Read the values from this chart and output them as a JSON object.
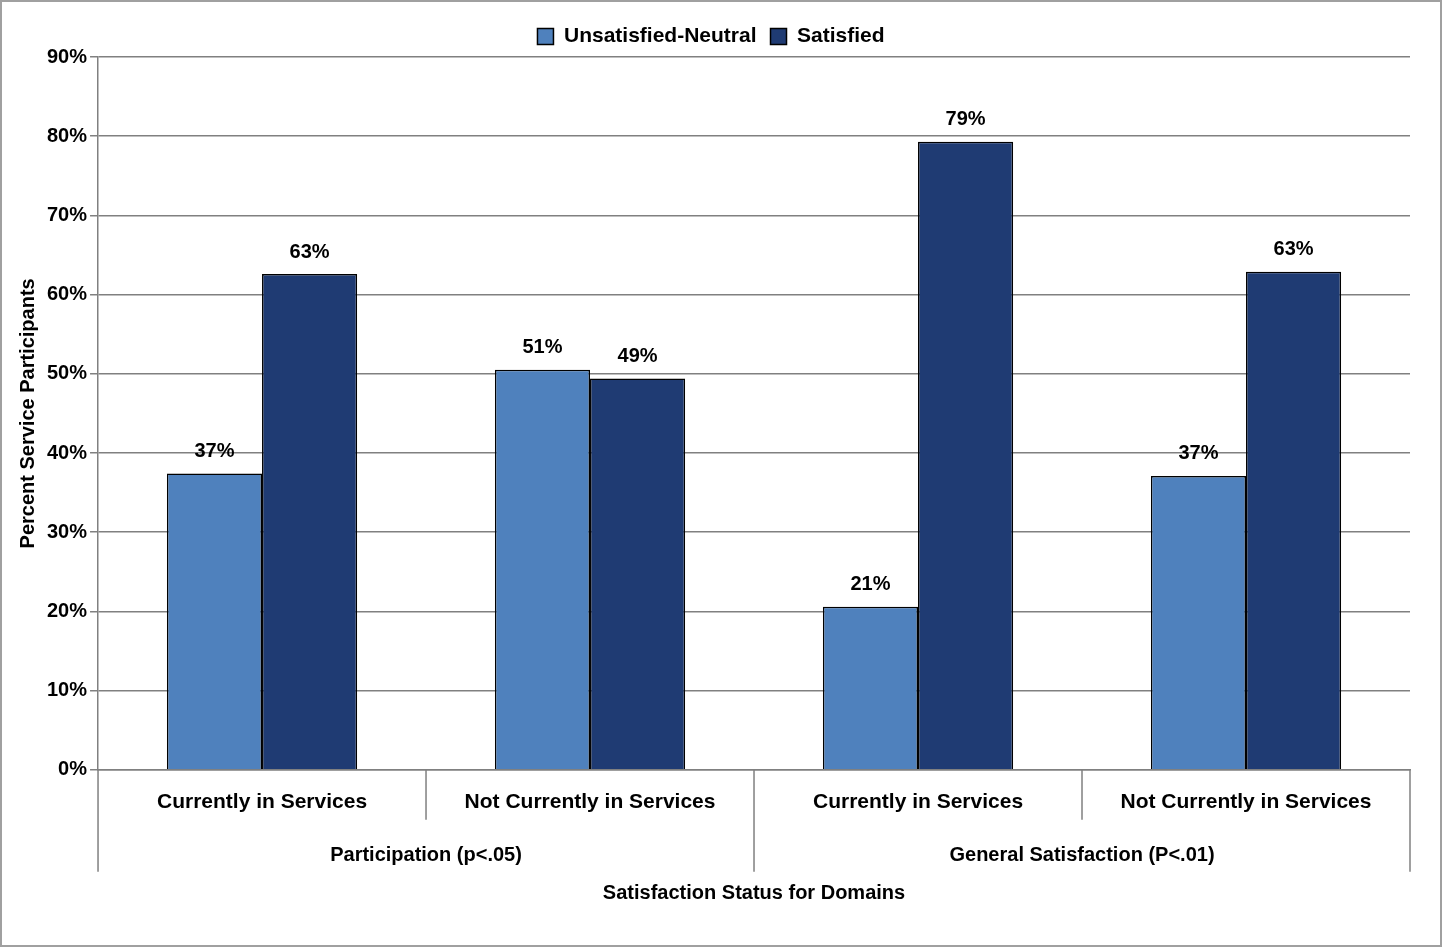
{
  "chart_data": {
    "type": "bar",
    "xlabel": "Satisfaction Status for Domains",
    "ylabel": "Percent Service Participants",
    "categories": [
      "Currently in Services",
      "Not Currently in Services",
      "Currently in Services",
      "Not Currently in Services"
    ],
    "series": [
      {
        "name": "Unsatisfied-Neutral",
        "color": "#4f81bd",
        "values": [
          37.4,
          50.5,
          20.6,
          37.1
        ],
        "value_labels": [
          "37%",
          "51%",
          "21%",
          "37%"
        ]
      },
      {
        "name": "Satisfied",
        "color": "#1f3b73",
        "values": [
          62.6,
          49.4,
          79.3,
          62.9
        ],
        "value_labels": [
          "63%",
          "49%",
          "79%",
          "63%"
        ]
      }
    ],
    "annotations": [
      "Participation (p<.05)",
      "General Satisfaction (P<.01)"
    ],
    "ylim": [
      0,
      90
    ],
    "yticks": [
      {
        "value": 0,
        "label": "0%"
      },
      {
        "value": 10,
        "label": "10%"
      },
      {
        "value": 20,
        "label": "20%"
      },
      {
        "value": 30,
        "label": "30%"
      },
      {
        "value": 40,
        "label": "40%"
      },
      {
        "value": 50,
        "label": "50%"
      },
      {
        "value": 60,
        "label": "60%"
      },
      {
        "value": 70,
        "label": "70%"
      },
      {
        "value": 80,
        "label": "80%"
      },
      {
        "value": 90,
        "label": "90%"
      }
    ],
    "grid": "y",
    "legend": "top"
  }
}
